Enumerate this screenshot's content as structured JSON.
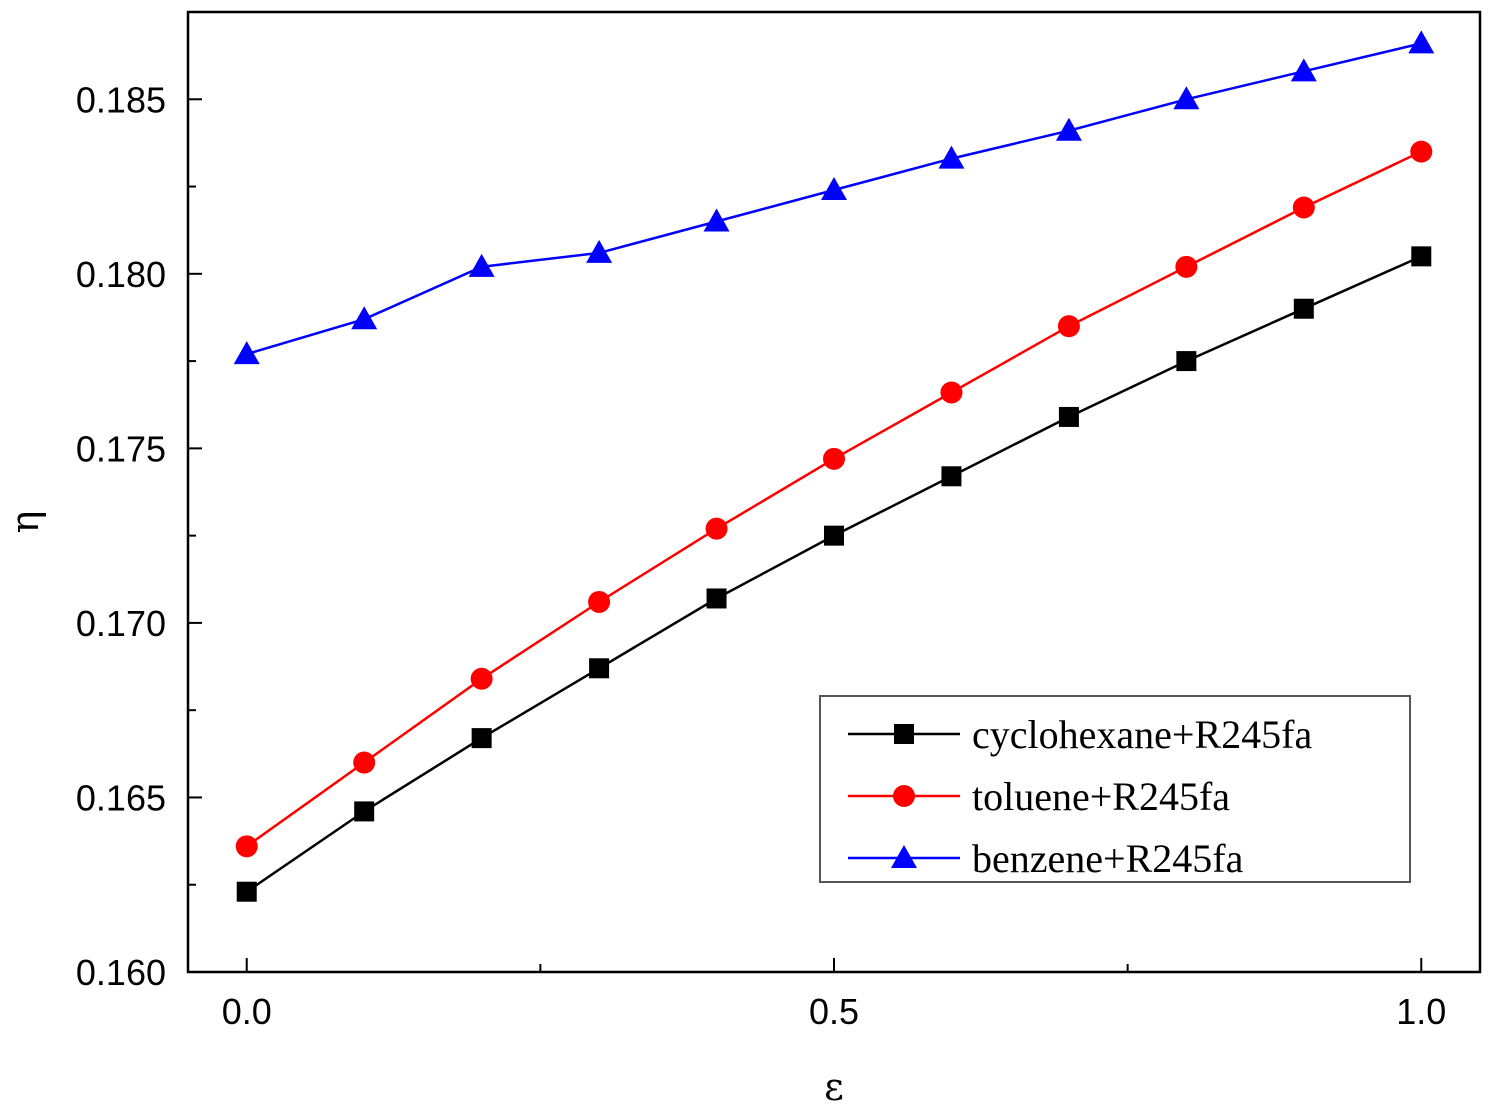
{
  "chart_data": {
    "type": "line",
    "title": "",
    "xlabel": "ε",
    "ylabel": "η",
    "xlim": [
      -0.05,
      1.05
    ],
    "ylim": [
      0.16,
      0.1875
    ],
    "xticks": [
      0.0,
      0.5,
      1.0
    ],
    "xtick_labels": [
      "0.0",
      "0.5",
      "1.0"
    ],
    "yticks": [
      0.16,
      0.165,
      0.17,
      0.175,
      0.18,
      0.185
    ],
    "ytick_labels": [
      "0.160",
      "0.165",
      "0.170",
      "0.175",
      "0.180",
      "0.185"
    ],
    "grid": false,
    "legend_position": "bottom-right",
    "x": [
      0.0,
      0.1,
      0.2,
      0.3,
      0.4,
      0.5,
      0.6,
      0.7,
      0.8,
      0.9,
      1.0
    ],
    "series": [
      {
        "name": "cyclohexane+R245fa",
        "color": "#000000",
        "marker": "square",
        "values": [
          0.1623,
          0.1646,
          0.1667,
          0.1687,
          0.1707,
          0.1725,
          0.1742,
          0.1759,
          0.1775,
          0.179,
          0.1805
        ]
      },
      {
        "name": "toluene+R245fa",
        "color": "#ff0000",
        "marker": "circle",
        "values": [
          0.1636,
          0.166,
          0.1684,
          0.1706,
          0.1727,
          0.1747,
          0.1766,
          0.1785,
          0.1802,
          0.1819,
          0.1835
        ]
      },
      {
        "name": "benzene+R245fa",
        "color": "#0000ff",
        "marker": "triangle",
        "values": [
          0.1777,
          0.1787,
          0.1802,
          0.1806,
          0.1815,
          0.1824,
          0.1833,
          0.1841,
          0.185,
          0.1858,
          0.1866
        ]
      }
    ]
  }
}
